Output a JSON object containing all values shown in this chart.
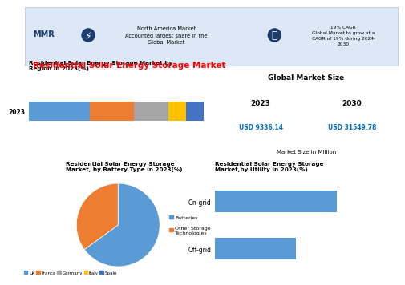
{
  "title": "Residential Solar Energy Storage Market",
  "header_text1": "North America Market\nAccounted largest share in the\nGlobal Market",
  "header_text2": "19% CAGR\nGlobal Market to grow at a\nCAGR of 19% during 2024-\n2030",
  "bar_title": "Residential Solar Energy Storage Market,by\nRegion in 2023(%)",
  "bar_year": "2023",
  "bar_categories": [
    "UK",
    "France",
    "Germany",
    "Italy",
    "Spain"
  ],
  "bar_values": [
    35,
    25,
    20,
    10,
    10
  ],
  "bar_colors": [
    "#5b9bd5",
    "#ed7d31",
    "#a5a5a5",
    "#ffc000",
    "#4472c4"
  ],
  "pie_title": "Residential Solar Energy Storage\nMarket, by Battery Type In 2023(%)",
  "pie_labels": [
    "Batteries",
    "Other Storage\nTechnologies"
  ],
  "pie_values": [
    65,
    35
  ],
  "pie_colors": [
    "#5b9bd5",
    "#ed7d31"
  ],
  "market_title": "Global Market Size",
  "market_year1": "2023",
  "market_year2": "2030",
  "market_val1": "USD 9336.14",
  "market_val2": "USD 31549.78",
  "market_note": "Market Size in Million",
  "utility_title": "Residential Solar Energy Storage\nMarket,by Utility In 2023(%)",
  "utility_categories": [
    "Off-grid",
    "On-grid"
  ],
  "utility_values": [
    40,
    60
  ],
  "utility_color": "#5b9bd5"
}
